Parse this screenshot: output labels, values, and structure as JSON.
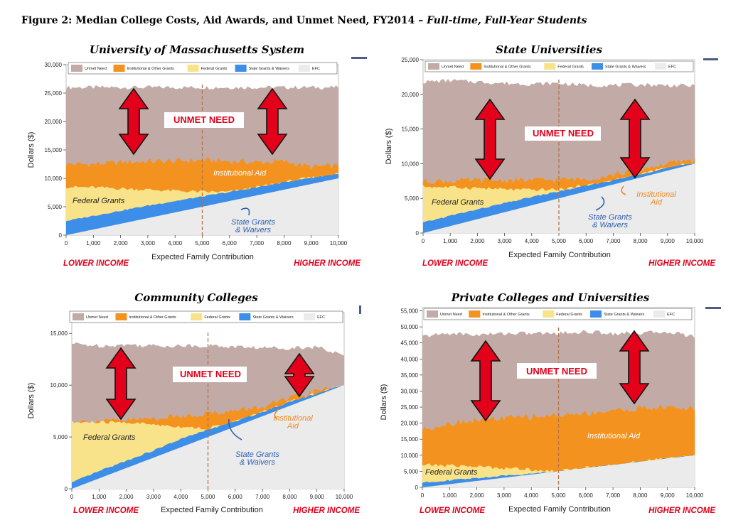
{
  "figure": {
    "title_main": "Figure 2: Median College Costs, Aid Awards, and Unmet Need, FY2014 –",
    "title_sub": " Full-time, Full-Year Students"
  },
  "colors": {
    "unmet_need": "#c2aba6",
    "institutional": "#f4921f",
    "federal": "#f9e38a",
    "state": "#3d8ee8",
    "efc": "#ebebeb",
    "arrow": "#e3001b",
    "annotation_red": "#e3001b",
    "annotation_blue": "#2b5fb3",
    "annotation_orange": "#f08a24"
  },
  "chart_data": [
    {
      "type": "area",
      "title": "University of Massachusetts System",
      "xlabel": "Expected Family Contribution",
      "ylabel": "Dollars ($)",
      "xlim": [
        0,
        10000
      ],
      "ylim": [
        0,
        30000
      ],
      "xticks": [
        0,
        1000,
        2000,
        3000,
        4000,
        5000,
        6000,
        7000,
        8000,
        9000,
        10000
      ],
      "xtick_labels": [
        "0",
        "1,000",
        "2,000",
        "3,000",
        "4,000",
        "5,000",
        "6,000",
        "7,000",
        "8,000",
        "9,000",
        "10,000"
      ],
      "yticks": [
        0,
        5000,
        10000,
        15000,
        20000,
        25000,
        30000
      ],
      "ytick_labels": [
        "0",
        "5,000",
        "10,000",
        "15,000",
        "20,000",
        "25,000",
        "30,000"
      ],
      "legend": [
        "Unmet Need",
        "Institutional & Other Grants",
        "Federal Grants",
        "State Grants & Waivers",
        "EFC"
      ],
      "legend_position": "top",
      "stack_tops_by_layer": {
        "x": [
          0,
          1000,
          2000,
          3000,
          4000,
          5000,
          6000,
          7000,
          8000,
          9000,
          10000
        ],
        "efc": [
          0,
          1000,
          2000,
          3000,
          4000,
          5000,
          6000,
          7000,
          8000,
          9000,
          10000
        ],
        "state": [
          2500,
          3400,
          4300,
          5200,
          6000,
          6800,
          7600,
          8400,
          9300,
          10100,
          10800
        ],
        "federal": [
          8500,
          8400,
          8200,
          8000,
          7800,
          7600,
          7600,
          8400,
          9300,
          10100,
          10800
        ],
        "institutional": [
          12500,
          12500,
          12800,
          13000,
          13000,
          13200,
          13000,
          12800,
          13000,
          12000,
          12200
        ],
        "unmet_need": [
          26000,
          26000,
          26000,
          26000,
          26000,
          26000,
          26000,
          26000,
          26000,
          26000,
          26000
        ]
      },
      "median_efc_line": 5000,
      "annotations": [
        "UNMET NEED",
        "Institutional Aid",
        "Federal Grants",
        "State Grants & Waivers",
        "LOWER INCOME",
        "HIGHER INCOME"
      ]
    },
    {
      "type": "area",
      "title": "State Universities",
      "xlabel": "Expected Family Contribution",
      "ylabel": "Dollars ($)",
      "xlim": [
        0,
        10000
      ],
      "ylim": [
        0,
        25000
      ],
      "xticks": [
        0,
        1000,
        2000,
        3000,
        4000,
        5000,
        6000,
        7000,
        8000,
        9000,
        10000
      ],
      "xtick_labels": [
        "0",
        "1,000",
        "2,000",
        "3,000",
        "4,000",
        "5,000",
        "6,000",
        "7,000",
        "8,000",
        "9,000",
        "10,000"
      ],
      "yticks": [
        0,
        5000,
        10000,
        15000,
        20000,
        25000
      ],
      "ytick_labels": [
        "0",
        "5,000",
        "10,000",
        "15,000",
        "20,000",
        "25,000"
      ],
      "legend": [
        "Unmet Need",
        "Institutional & Other Grants",
        "Federal Grants",
        "State Grants & Waivers",
        "EFC"
      ],
      "legend_position": "top",
      "stack_tops_by_layer": {
        "x": [
          0,
          1000,
          2000,
          3000,
          4000,
          5000,
          6000,
          7000,
          8000,
          9000,
          10000
        ],
        "efc": [
          0,
          1000,
          2000,
          3000,
          4000,
          5000,
          6000,
          7000,
          8000,
          9000,
          10000
        ],
        "state": [
          1500,
          2500,
          3400,
          4300,
          5200,
          6000,
          6800,
          7600,
          8500,
          9400,
          10100
        ],
        "federal": [
          6700,
          6600,
          6500,
          6300,
          6200,
          6300,
          6800,
          7600,
          8500,
          9400,
          10100
        ],
        "institutional": [
          7500,
          7500,
          7600,
          7600,
          7600,
          7700,
          7800,
          8400,
          9200,
          10000,
          10600
        ],
        "unmet_need": [
          21800,
          22000,
          21800,
          21600,
          21500,
          21600,
          21300,
          21300,
          21400,
          21300,
          21200
        ]
      },
      "median_efc_line": 5000,
      "annotations": [
        "UNMET NEED",
        "Institutional Aid",
        "Federal Grants",
        "State Grants & Waivers",
        "LOWER INCOME",
        "HIGHER INCOME"
      ]
    },
    {
      "type": "area",
      "title": "Community Colleges",
      "xlabel": "Expected Family Contribution",
      "ylabel": "Dollars ($)",
      "xlim": [
        0,
        10000
      ],
      "ylim": [
        0,
        17000
      ],
      "xticks": [
        0,
        1000,
        2000,
        3000,
        4000,
        5000,
        6000,
        7000,
        8000,
        9000,
        10000
      ],
      "xtick_labels": [
        "0",
        "1,000",
        "2,000",
        "3,000",
        "4,000",
        "5,000",
        "6,000",
        "7,000",
        "8,000",
        "9,000",
        "10,000"
      ],
      "yticks": [
        0,
        5000,
        10000,
        15000
      ],
      "ytick_labels": [
        "0",
        "5,000",
        "10,000",
        "15,000"
      ],
      "legend": [
        "Unmet Need",
        "Institutional & Other Grants",
        "Federal Grants",
        "State Grants & Waivers",
        "EFC"
      ],
      "legend_position": "top",
      "stack_tops_by_layer": {
        "x": [
          0,
          1000,
          2000,
          3000,
          4000,
          5000,
          6000,
          7000,
          8000,
          9000,
          10000
        ],
        "efc": [
          0,
          1000,
          2000,
          3000,
          4000,
          5000,
          6000,
          7000,
          8000,
          9000,
          10000
        ],
        "state": [
          600,
          1700,
          2700,
          3700,
          4800,
          5700,
          6500,
          7400,
          8400,
          9200,
          10000
        ],
        "federal": [
          6400,
          6400,
          6400,
          6200,
          6000,
          5800,
          6500,
          7400,
          8400,
          9200,
          10000
        ],
        "institutional": [
          6500,
          6500,
          6600,
          6800,
          7000,
          7300,
          7500,
          7900,
          8700,
          9400,
          10000
        ],
        "unmet_need": [
          14000,
          13800,
          13900,
          13800,
          13800,
          13800,
          13700,
          13600,
          13600,
          13700,
          12800
        ]
      },
      "median_efc_line": 5000,
      "annotations": [
        "UNMET NEED",
        "Institutional Aid",
        "Federal Grants",
        "State Grants & Waivers",
        "LOWER INCOME",
        "HIGHER INCOME"
      ]
    },
    {
      "type": "area",
      "title": "Private Colleges and Universities",
      "xlabel": "Expected Family Contribution",
      "ylabel": "Dollars ($)",
      "xlim": [
        0,
        10000
      ],
      "ylim": [
        0,
        56000
      ],
      "xticks": [
        0,
        1000,
        2000,
        3000,
        4000,
        5000,
        6000,
        7000,
        8000,
        9000,
        10000
      ],
      "xtick_labels": [
        "0",
        "1,000",
        "2,000",
        "3,000",
        "4,000",
        "5,000",
        "6,000",
        "7,000",
        "8,000",
        "9,000",
        "10,000"
      ],
      "yticks": [
        0,
        5000,
        10000,
        15000,
        20000,
        25000,
        30000,
        35000,
        40000,
        45000,
        50000,
        55000
      ],
      "ytick_labels": [
        "0",
        "5,000",
        "10,000",
        "15,000",
        "20,000",
        "25,000",
        "30,000",
        "35,000",
        "40,000",
        "45,000",
        "50,000",
        "55,000"
      ],
      "legend": [
        "Unmet Need",
        "Institutional & Other Grants",
        "Federal Grants",
        "State Grants & Waivers",
        "EFC"
      ],
      "legend_position": "top",
      "stack_tops_by_layer": {
        "x": [
          0,
          1000,
          2000,
          3000,
          4000,
          5000,
          6000,
          7000,
          8000,
          9000,
          10000
        ],
        "efc": [
          0,
          1000,
          2000,
          3000,
          4000,
          5000,
          6000,
          7000,
          8000,
          9000,
          10000
        ],
        "state": [
          1500,
          2200,
          2900,
          3600,
          4300,
          5000,
          6000,
          7000,
          8000,
          9000,
          10000
        ],
        "federal": [
          7000,
          6800,
          6500,
          6000,
          5600,
          5000,
          6000,
          7000,
          8000,
          9000,
          10000
        ],
        "institutional": [
          18000,
          20000,
          21000,
          21500,
          22000,
          22500,
          23000,
          24000,
          24500,
          25000,
          24500
        ],
        "unmet_need": [
          47000,
          48000,
          47500,
          48000,
          48000,
          48000,
          48500,
          48000,
          48000,
          48500,
          47000
        ]
      },
      "median_efc_line": 5000,
      "annotations": [
        "UNMET NEED",
        "Institutional Aid",
        "Federal Grants",
        "LOWER INCOME",
        "HIGHER INCOME"
      ]
    }
  ]
}
